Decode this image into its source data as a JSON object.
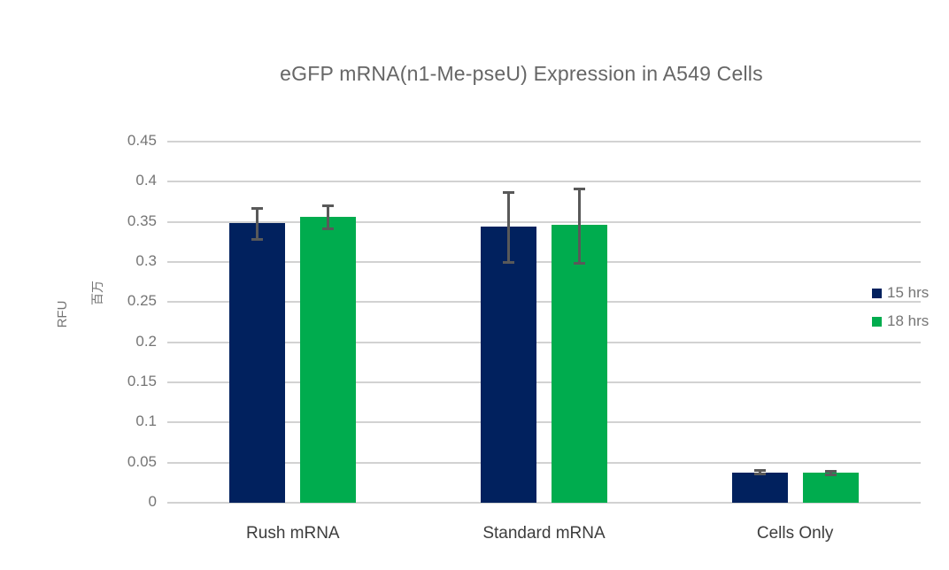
{
  "chart_data": {
    "type": "bar",
    "title": "eGFP mRNA(n1-Me-pseU) Expression in A549 Cells",
    "ylabel": "RFU",
    "y_unit_label": "百万",
    "categories": [
      "Rush mRNA",
      "Standard mRNA",
      "Cells Only"
    ],
    "series": [
      {
        "name": "15 hrs",
        "color": "#01215E",
        "values": [
          0.348,
          0.344,
          0.038
        ],
        "error_low": [
          0.328,
          0.299,
          0.036
        ],
        "error_high": [
          0.367,
          0.387,
          0.04
        ]
      },
      {
        "name": "18 hrs",
        "color": "#00AC4E",
        "values": [
          0.356,
          0.346,
          0.037
        ],
        "error_low": [
          0.341,
          0.298,
          0.035
        ],
        "error_high": [
          0.37,
          0.391,
          0.039
        ]
      }
    ],
    "ylim": [
      0,
      0.45
    ],
    "ytick_step": 0.05,
    "ytick_labels": [
      "0",
      "0.05",
      "0.1",
      "0.15",
      "0.2",
      "0.25",
      "0.3",
      "0.35",
      "0.4",
      "0.45"
    ],
    "grid": true,
    "legend_position": "right"
  },
  "colors": {
    "background": "#FFFFFF",
    "gridline": "#D2D2D2",
    "error_bar": "#595959",
    "title_text": "#666666",
    "tick_text": "#757575",
    "category_text": "#3D3D3D",
    "legend_text": "#757575"
  }
}
